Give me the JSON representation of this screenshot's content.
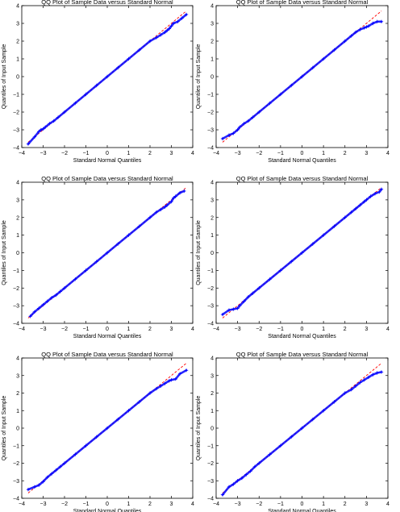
{
  "chart_data": [
    {
      "type": "scatter",
      "title": "QQ Plot of Sample Data versus Standard Normal",
      "xlabel": "Standard Normal Quantiles",
      "ylabel": "Quantiles of Input Sample",
      "xlim": [
        -4,
        4
      ],
      "ylim": [
        -4,
        4
      ],
      "xticks": [
        -4,
        -3,
        -2,
        -1,
        0,
        1,
        2,
        3,
        4
      ],
      "yticks": [
        -4,
        -3,
        -2,
        -1,
        0,
        1,
        2,
        3,
        4
      ],
      "grid": false,
      "series": [
        {
          "marker": "+",
          "color": "#0000ff",
          "x": [
            -3.7,
            -3.4,
            -3.2,
            -3.1,
            -3.0,
            -2.9,
            -2.7,
            -2.5,
            -2.3,
            -2.0,
            -1.5,
            -1.0,
            -0.5,
            0,
            0.5,
            1.0,
            1.5,
            2.0,
            2.3,
            2.5,
            2.7,
            2.8,
            2.9,
            3.0,
            3.1,
            3.3,
            3.5,
            3.7
          ],
          "y": [
            -3.8,
            -3.4,
            -3.1,
            -3.0,
            -2.95,
            -2.85,
            -2.65,
            -2.5,
            -2.3,
            -2.0,
            -1.5,
            -1.0,
            -0.5,
            0,
            0.5,
            1.0,
            1.5,
            2.0,
            2.2,
            2.35,
            2.5,
            2.6,
            2.7,
            2.85,
            3.0,
            3.1,
            3.3,
            3.5
          ]
        },
        {
          "type": "line",
          "style": "dashed",
          "color": "#ff0000",
          "points": [
            [
              -3.7,
              -3.7
            ],
            [
              3.7,
              3.7
            ]
          ]
        }
      ]
    },
    {
      "type": "scatter",
      "title": "QQ Plot of Sample Data versus Standard Normal",
      "xlabel": "Standard Normal Quantiles",
      "ylabel": "Quantiles of Input Sample",
      "xlim": [
        -4,
        4
      ],
      "ylim": [
        -4,
        4
      ],
      "xticks": [
        -4,
        -3,
        -2,
        -1,
        0,
        1,
        2,
        3,
        4
      ],
      "yticks": [
        -4,
        -3,
        -2,
        -1,
        0,
        1,
        2,
        3,
        4
      ],
      "grid": false,
      "series": [
        {
          "marker": "+",
          "color": "#0000ff",
          "x": [
            -3.7,
            -3.4,
            -3.2,
            -3.0,
            -2.9,
            -2.7,
            -2.5,
            -2.3,
            -2.0,
            -1.5,
            -1.0,
            -0.5,
            0,
            0.5,
            1.0,
            1.5,
            2.0,
            2.3,
            2.5,
            2.7,
            2.9,
            3.0,
            3.1,
            3.3,
            3.5,
            3.7
          ],
          "y": [
            -3.5,
            -3.3,
            -3.2,
            -3.0,
            -2.85,
            -2.65,
            -2.5,
            -2.3,
            -2.0,
            -1.5,
            -1.0,
            -0.5,
            0,
            0.5,
            1.0,
            1.5,
            2.0,
            2.3,
            2.5,
            2.65,
            2.75,
            2.8,
            2.85,
            3.0,
            3.1,
            3.1
          ]
        },
        {
          "type": "line",
          "style": "dashed",
          "color": "#ff0000",
          "points": [
            [
              -3.7,
              -3.7
            ],
            [
              3.7,
              3.7
            ]
          ]
        }
      ]
    },
    {
      "type": "scatter",
      "title": "QQ Plot of Sample Data versus Standard Normal",
      "xlabel": "Standard Normal Quantiles",
      "ylabel": "Quantiles of Input Sample",
      "xlim": [
        -4,
        4
      ],
      "ylim": [
        -4,
        4
      ],
      "xticks": [
        -4,
        -3,
        -2,
        -1,
        0,
        1,
        2,
        3,
        4
      ],
      "yticks": [
        -4,
        -3,
        -2,
        -1,
        0,
        1,
        2,
        3,
        4
      ],
      "grid": false,
      "series": [
        {
          "marker": "+",
          "color": "#0000ff",
          "x": [
            -3.6,
            -3.4,
            -3.2,
            -3.0,
            -2.8,
            -2.6,
            -2.4,
            -2.2,
            -2.0,
            -1.5,
            -1.0,
            -0.5,
            0,
            0.5,
            1.0,
            1.5,
            2.0,
            2.3,
            2.5,
            2.7,
            2.8,
            3.0,
            3.1,
            3.2,
            3.4,
            3.6
          ],
          "y": [
            -3.6,
            -3.35,
            -3.15,
            -2.95,
            -2.75,
            -2.55,
            -2.4,
            -2.2,
            -2.0,
            -1.5,
            -1.0,
            -0.5,
            0,
            0.5,
            1.0,
            1.5,
            2.0,
            2.3,
            2.45,
            2.6,
            2.7,
            2.9,
            3.1,
            3.2,
            3.4,
            3.5
          ]
        },
        {
          "type": "line",
          "style": "dashed",
          "color": "#ff0000",
          "points": [
            [
              -3.7,
              -3.7
            ],
            [
              3.7,
              3.7
            ]
          ]
        }
      ]
    },
    {
      "type": "scatter",
      "title": "QQ Plot of Sample Data versus Standard Normal",
      "xlabel": "Standard Normal Quantiles",
      "ylabel": "Quantiles of Input Sample",
      "xlim": [
        -4,
        4
      ],
      "ylim": [
        -4,
        4
      ],
      "xticks": [
        -4,
        -3,
        -2,
        -1,
        0,
        1,
        2,
        3,
        4
      ],
      "yticks": [
        -4,
        -3,
        -2,
        -1,
        0,
        1,
        2,
        3,
        4
      ],
      "grid": false,
      "series": [
        {
          "marker": "+",
          "color": "#0000ff",
          "x": [
            -3.7,
            -3.4,
            -3.2,
            -3.0,
            -2.9,
            -2.7,
            -2.5,
            -2.3,
            -2.0,
            -1.5,
            -1.0,
            -0.5,
            0,
            0.5,
            1.0,
            1.5,
            2.0,
            2.3,
            2.5,
            2.7,
            2.9,
            3.0,
            3.2,
            3.4,
            3.6,
            3.7
          ],
          "y": [
            -3.5,
            -3.25,
            -3.2,
            -3.15,
            -3.0,
            -2.75,
            -2.5,
            -2.3,
            -2.0,
            -1.5,
            -1.0,
            -0.5,
            0,
            0.5,
            1.0,
            1.5,
            2.0,
            2.3,
            2.5,
            2.7,
            2.9,
            3.0,
            3.2,
            3.35,
            3.45,
            3.6
          ]
        },
        {
          "type": "line",
          "style": "dashed",
          "color": "#ff0000",
          "points": [
            [
              -3.7,
              -3.7
            ],
            [
              3.7,
              3.7
            ]
          ]
        }
      ]
    },
    {
      "type": "scatter",
      "title": "QQ Plot of Sample Data versus Standard Normal",
      "xlabel": "Standard Normal Quantiles",
      "ylabel": "Quantiles of Input Sample",
      "xlim": [
        -4,
        4
      ],
      "ylim": [
        -4,
        4
      ],
      "xticks": [
        -4,
        -3,
        -2,
        -1,
        0,
        1,
        2,
        3,
        4
      ],
      "yticks": [
        -4,
        -3,
        -2,
        -1,
        0,
        1,
        2,
        3,
        4
      ],
      "grid": false,
      "series": [
        {
          "marker": "+",
          "color": "#0000ff",
          "x": [
            -3.7,
            -3.4,
            -3.2,
            -3.0,
            -2.8,
            -2.6,
            -2.4,
            -2.2,
            -2.0,
            -1.5,
            -1.0,
            -0.5,
            0,
            0.5,
            1.0,
            1.5,
            2.0,
            2.3,
            2.5,
            2.7,
            2.9,
            3.0,
            3.2,
            3.4,
            3.7
          ],
          "y": [
            -3.5,
            -3.35,
            -3.25,
            -3.05,
            -2.8,
            -2.6,
            -2.4,
            -2.2,
            -2.0,
            -1.5,
            -1.0,
            -0.5,
            0,
            0.5,
            1.0,
            1.5,
            2.0,
            2.25,
            2.4,
            2.55,
            2.7,
            2.75,
            2.8,
            3.1,
            3.3
          ]
        },
        {
          "type": "line",
          "style": "dashed",
          "color": "#ff0000",
          "points": [
            [
              -3.7,
              -3.7
            ],
            [
              3.7,
              3.7
            ]
          ]
        }
      ]
    },
    {
      "type": "scatter",
      "title": "QQ Plot of Sample Data versus Standard Normal",
      "xlabel": "Standard Normal Quantiles",
      "ylabel": "Quantiles of Input Sample",
      "xlim": [
        -4,
        4
      ],
      "ylim": [
        -4,
        4
      ],
      "xticks": [
        -4,
        -3,
        -2,
        -1,
        0,
        1,
        2,
        3,
        4
      ],
      "yticks": [
        -4,
        -3,
        -2,
        -1,
        0,
        1,
        2,
        3,
        4
      ],
      "grid": false,
      "series": [
        {
          "marker": "+",
          "color": "#0000ff",
          "x": [
            -3.7,
            -3.4,
            -3.2,
            -3.0,
            -2.8,
            -2.6,
            -2.4,
            -2.2,
            -2.0,
            -1.5,
            -1.0,
            -0.5,
            0,
            0.5,
            1.0,
            1.5,
            2.0,
            2.3,
            2.5,
            2.7,
            2.9,
            3.1,
            3.3,
            3.5,
            3.7
          ],
          "y": [
            -3.8,
            -3.35,
            -3.2,
            -3.0,
            -2.85,
            -2.65,
            -2.45,
            -2.2,
            -2.0,
            -1.5,
            -1.0,
            -0.5,
            0,
            0.5,
            1.0,
            1.5,
            2.0,
            2.2,
            2.4,
            2.6,
            2.75,
            2.9,
            3.05,
            3.15,
            3.2
          ]
        },
        {
          "type": "line",
          "style": "dashed",
          "color": "#ff0000",
          "points": [
            [
              -3.7,
              -3.7
            ],
            [
              3.7,
              3.7
            ]
          ]
        }
      ]
    }
  ]
}
